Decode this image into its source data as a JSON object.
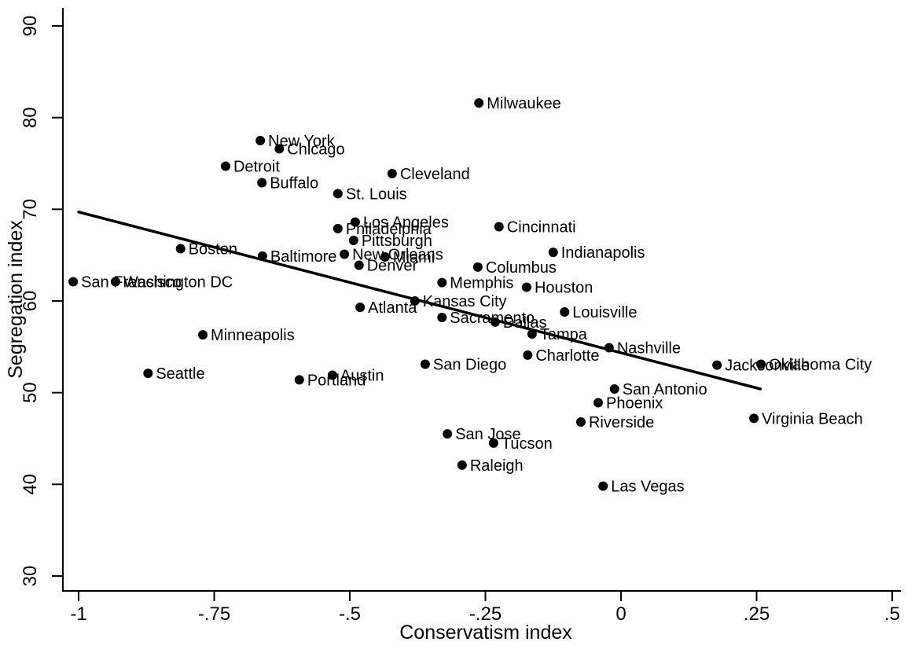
{
  "figure": {
    "background_color": "#ffffff",
    "text_color": "#000000"
  },
  "chart_data": {
    "type": "scatter",
    "title": "",
    "xlabel": "Conservatism index",
    "ylabel": "Segregation index",
    "xlim": [
      -1.04,
      0.52
    ],
    "ylim": [
      28.2,
      91.5
    ],
    "grid": false,
    "legend_position": "none",
    "marker_color": "#000000",
    "axis_color": "#000000",
    "x_ticks": [
      {
        "value": -1,
        "label": "-1"
      },
      {
        "value": -0.75,
        "label": "-.75"
      },
      {
        "value": -0.5,
        "label": "-.5"
      },
      {
        "value": -0.25,
        "label": "-.25"
      },
      {
        "value": 0,
        "label": "0"
      },
      {
        "value": 0.25,
        "label": ".25"
      },
      {
        "value": 0.5,
        "label": ".5"
      }
    ],
    "y_ticks": [
      {
        "value": 30,
        "label": "30"
      },
      {
        "value": 40,
        "label": "40"
      },
      {
        "value": 50,
        "label": "50"
      },
      {
        "value": 60,
        "label": "60"
      },
      {
        "value": 70,
        "label": "70"
      },
      {
        "value": 80,
        "label": "80"
      },
      {
        "value": 90,
        "label": "90"
      }
    ],
    "trend_line": {
      "x1": -1.0,
      "y1": 69.7,
      "x2": 0.257,
      "y2": 50.4,
      "color": "#000000"
    },
    "points": [
      {
        "label": "Milwaukee",
        "x": -0.262,
        "y": 81.6
      },
      {
        "label": "New York",
        "x": -0.665,
        "y": 77.5
      },
      {
        "label": "Chicago",
        "x": -0.63,
        "y": 76.6
      },
      {
        "label": "Detroit",
        "x": -0.729,
        "y": 74.7
      },
      {
        "label": "Cleveland",
        "x": -0.422,
        "y": 73.9
      },
      {
        "label": "Buffalo",
        "x": -0.662,
        "y": 72.9
      },
      {
        "label": "St. Louis",
        "x": -0.522,
        "y": 71.7
      },
      {
        "label": "Los Angeles",
        "x": -0.49,
        "y": 68.6
      },
      {
        "label": "Cincinnati",
        "x": -0.225,
        "y": 68.1
      },
      {
        "label": "Philadelphia",
        "x": -0.522,
        "y": 67.9
      },
      {
        "label": "Pittsburgh",
        "x": -0.493,
        "y": 66.6
      },
      {
        "label": "Boston",
        "x": -0.812,
        "y": 65.7
      },
      {
        "label": "Indianapolis",
        "x": -0.125,
        "y": 65.3
      },
      {
        "label": "New Orleans",
        "x": -0.51,
        "y": 65.1
      },
      {
        "label": "Baltimore",
        "x": -0.661,
        "y": 64.9
      },
      {
        "label": "Miami",
        "x": -0.435,
        "y": 64.8
      },
      {
        "label": "Denver",
        "x": -0.483,
        "y": 63.9
      },
      {
        "label": "Columbus",
        "x": -0.264,
        "y": 63.7
      },
      {
        "label": "San Francisco",
        "x": -1.01,
        "y": 62.1
      },
      {
        "label": "Washington DC",
        "x": -0.932,
        "y": 62.1
      },
      {
        "label": "Memphis",
        "x": -0.33,
        "y": 62.0
      },
      {
        "label": "Houston",
        "x": -0.174,
        "y": 61.5
      },
      {
        "label": "Kansas City",
        "x": -0.38,
        "y": 60.0
      },
      {
        "label": "Atlanta",
        "x": -0.481,
        "y": 59.3
      },
      {
        "label": "Louisville",
        "x": -0.104,
        "y": 58.8
      },
      {
        "label": "Sacramento",
        "x": -0.33,
        "y": 58.2
      },
      {
        "label": "Dallas",
        "x": -0.232,
        "y": 57.7
      },
      {
        "label": "Tampa",
        "x": -0.164,
        "y": 56.4
      },
      {
        "label": "Minneapolis",
        "x": -0.771,
        "y": 56.3
      },
      {
        "label": "Nashville",
        "x": -0.022,
        "y": 54.9
      },
      {
        "label": "Charlotte",
        "x": -0.172,
        "y": 54.1
      },
      {
        "label": "San Diego",
        "x": -0.361,
        "y": 53.1
      },
      {
        "label": "Oklahoma City",
        "x": 0.258,
        "y": 53.1
      },
      {
        "label": "Jacksonville",
        "x": 0.177,
        "y": 53.0
      },
      {
        "label": "Seattle",
        "x": -0.872,
        "y": 52.1
      },
      {
        "label": "Austin",
        "x": -0.532,
        "y": 51.9
      },
      {
        "label": "Portland",
        "x": -0.593,
        "y": 51.4
      },
      {
        "label": "San Antonio",
        "x": -0.012,
        "y": 50.4
      },
      {
        "label": "Phoenix",
        "x": -0.042,
        "y": 48.9
      },
      {
        "label": "Virginia Beach",
        "x": 0.245,
        "y": 47.2
      },
      {
        "label": "Riverside",
        "x": -0.074,
        "y": 46.8
      },
      {
        "label": "San Jose",
        "x": -0.32,
        "y": 45.5
      },
      {
        "label": "Tucson",
        "x": -0.235,
        "y": 44.5
      },
      {
        "label": "Raleigh",
        "x": -0.293,
        "y": 42.1
      },
      {
        "label": "Las Vegas",
        "x": -0.033,
        "y": 39.8
      }
    ]
  }
}
